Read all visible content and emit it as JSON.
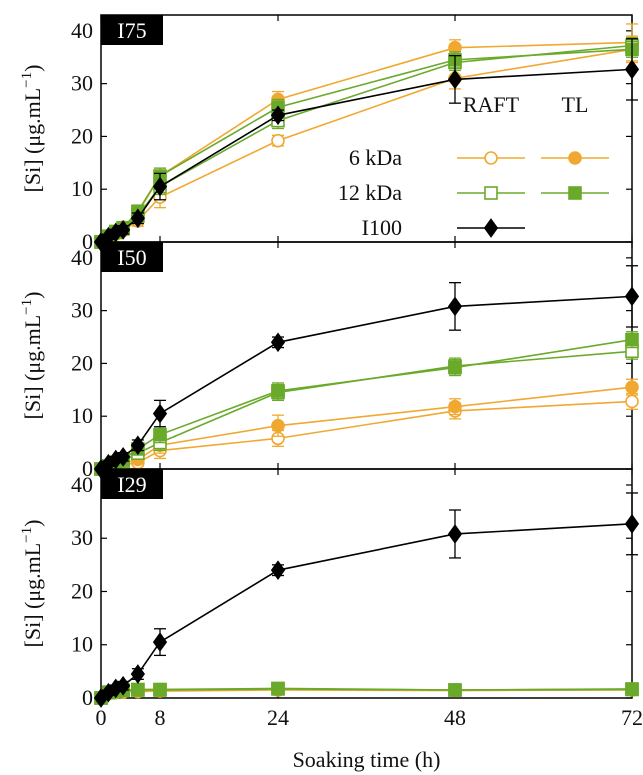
{
  "chart_data": {
    "type": "line",
    "xlabel": "Soaking time (h)",
    "ylabel": "[Si] (μg.mL",
    "ylabel_sup": "−1",
    "ylabel_close": ")",
    "x_ticks": [
      0,
      8,
      24,
      48,
      72
    ],
    "y_ticks": [
      0,
      10,
      20,
      30,
      40
    ],
    "xlim": [
      0,
      72
    ],
    "ylim": [
      0,
      43
    ],
    "legend": {
      "col_headers": [
        "RAFT",
        "TL"
      ],
      "row_labels": [
        "6 kDa",
        "12 kDa",
        "I100"
      ]
    },
    "colors": {
      "6kDa": "#f0a830",
      "12kDa": "#6aaa2a",
      "I100": "#000000"
    },
    "panels": [
      {
        "label": "I75",
        "series": [
          {
            "id": "raft6",
            "x": [
              0,
              1,
              2,
              3,
              5,
              8,
              24,
              48,
              72
            ],
            "y": [
              0,
              0.8,
              1.5,
              2.2,
              4.0,
              8.5,
              19.2,
              31.0,
              36.5
            ],
            "err": [
              0,
              0.5,
              0.6,
              0.8,
              1.0,
              2.0,
              1.0,
              2.0,
              2.5
            ]
          },
          {
            "id": "tl6",
            "x": [
              0,
              1,
              2,
              3,
              5,
              8,
              24,
              48,
              72
            ],
            "y": [
              0,
              1.2,
              2.0,
              2.8,
              5.5,
              12.5,
              27.0,
              36.8,
              37.8
            ],
            "err": [
              0,
              0.6,
              0.8,
              1.0,
              1.2,
              1.5,
              1.5,
              1.5,
              3.5
            ]
          },
          {
            "id": "raft12",
            "x": [
              0,
              1,
              2,
              3,
              5,
              8,
              24,
              48,
              72
            ],
            "y": [
              0,
              1.0,
              1.8,
              2.5,
              5.0,
              10.5,
              23.0,
              34.0,
              37.2
            ],
            "err": [
              0,
              0.6,
              0.8,
              1.0,
              1.0,
              1.5,
              1.5,
              1.5,
              1.5
            ]
          },
          {
            "id": "tl12",
            "x": [
              0,
              1,
              2,
              3,
              5,
              8,
              24,
              48,
              72
            ],
            "y": [
              0,
              1.1,
              2.0,
              2.7,
              5.8,
              12.5,
              25.5,
              34.5,
              36.5
            ],
            "err": [
              0,
              0.6,
              0.8,
              1.0,
              1.2,
              1.5,
              1.5,
              1.5,
              1.5
            ]
          },
          {
            "id": "i100",
            "x": [
              0,
              1,
              2,
              3,
              5,
              8,
              24,
              48,
              72
            ],
            "y": [
              0,
              1.0,
              1.8,
              2.3,
              4.5,
              10.5,
              24.0,
              30.8,
              32.7
            ],
            "err": [
              0,
              0.5,
              0.6,
              0.8,
              1.0,
              2.5,
              1.0,
              4.5,
              5.8
            ]
          }
        ]
      },
      {
        "label": "I50",
        "series": [
          {
            "id": "raft6",
            "x": [
              0,
              1,
              2,
              3,
              5,
              8,
              24,
              48,
              72
            ],
            "y": [
              0,
              0.3,
              0.6,
              0.8,
              1.2,
              3.5,
              5.8,
              11.0,
              12.8
            ],
            "err": [
              0,
              0.3,
              0.4,
              0.5,
              0.6,
              1.5,
              1.5,
              1.5,
              1.5
            ]
          },
          {
            "id": "tl6",
            "x": [
              0,
              1,
              2,
              3,
              5,
              8,
              24,
              48,
              72
            ],
            "y": [
              0,
              0.4,
              0.8,
              1.1,
              1.8,
              4.5,
              8.2,
              11.8,
              15.5
            ],
            "err": [
              0,
              0.3,
              0.4,
              0.5,
              0.6,
              1.5,
              2.0,
              1.5,
              1.5
            ]
          },
          {
            "id": "raft12",
            "x": [
              0,
              1,
              2,
              3,
              5,
              8,
              24,
              48,
              72
            ],
            "y": [
              0,
              0.5,
              1.0,
              1.5,
              3.0,
              5.0,
              14.5,
              19.5,
              22.3
            ],
            "err": [
              0,
              0.4,
              0.5,
              0.6,
              0.8,
              1.5,
              1.5,
              1.5,
              1.5
            ]
          },
          {
            "id": "tl12",
            "x": [
              0,
              1,
              2,
              3,
              5,
              8,
              24,
              48,
              72
            ],
            "y": [
              0,
              0.6,
              1.2,
              1.8,
              3.8,
              6.5,
              14.8,
              19.2,
              24.5
            ],
            "err": [
              0,
              0.4,
              0.5,
              0.6,
              0.8,
              1.5,
              1.5,
              1.5,
              1.5
            ]
          },
          {
            "id": "i100",
            "x": [
              0,
              1,
              2,
              3,
              5,
              8,
              24,
              48,
              72
            ],
            "y": [
              0,
              1.0,
              1.8,
              2.3,
              4.5,
              10.5,
              24.0,
              30.8,
              32.7
            ],
            "err": [
              0,
              0.5,
              0.6,
              0.8,
              1.0,
              2.5,
              1.0,
              4.5,
              5.8
            ]
          }
        ]
      },
      {
        "label": "I29",
        "series": [
          {
            "id": "raft6",
            "x": [
              0,
              1,
              2,
              3,
              5,
              8,
              24,
              48,
              72
            ],
            "y": [
              0,
              0.8,
              1.0,
              1.1,
              1.2,
              1.3,
              1.5,
              1.4,
              1.5
            ],
            "err": [
              0,
              0.4,
              0.4,
              0.4,
              0.4,
              0.4,
              0.4,
              0.4,
              0.4
            ]
          },
          {
            "id": "tl6",
            "x": [
              0,
              1,
              2,
              3,
              5,
              8,
              24,
              48,
              72
            ],
            "y": [
              0,
              0.9,
              1.1,
              1.2,
              1.3,
              1.4,
              1.6,
              1.5,
              1.6
            ],
            "err": [
              0,
              0.4,
              0.4,
              0.4,
              0.4,
              0.4,
              0.4,
              0.4,
              0.4
            ]
          },
          {
            "id": "raft12",
            "x": [
              0,
              1,
              2,
              3,
              5,
              8,
              24,
              48,
              72
            ],
            "y": [
              0,
              1.0,
              1.2,
              1.4,
              1.5,
              1.5,
              1.7,
              1.5,
              1.6
            ],
            "err": [
              0,
              0.4,
              0.4,
              0.4,
              0.4,
              0.4,
              0.4,
              0.4,
              0.4
            ]
          },
          {
            "id": "tl12",
            "x": [
              0,
              1,
              2,
              3,
              5,
              8,
              24,
              48,
              72
            ],
            "y": [
              0,
              1.1,
              1.3,
              1.5,
              1.6,
              1.6,
              1.8,
              1.5,
              1.7
            ],
            "err": [
              0,
              0.4,
              0.4,
              0.4,
              0.4,
              0.4,
              0.4,
              0.4,
              0.4
            ]
          },
          {
            "id": "i100",
            "x": [
              0,
              1,
              2,
              3,
              5,
              8,
              24,
              48,
              72
            ],
            "y": [
              0,
              1.0,
              1.8,
              2.3,
              4.5,
              10.5,
              24.0,
              30.8,
              32.7
            ],
            "err": [
              0,
              0.5,
              0.6,
              0.8,
              1.0,
              2.5,
              1.0,
              4.5,
              5.8
            ]
          }
        ]
      }
    ],
    "series_styles": {
      "raft6": {
        "color": "6kDa",
        "marker": "circle",
        "fill": false
      },
      "tl6": {
        "color": "6kDa",
        "marker": "circle",
        "fill": true
      },
      "raft12": {
        "color": "12kDa",
        "marker": "square",
        "fill": false
      },
      "tl12": {
        "color": "12kDa",
        "marker": "square",
        "fill": true
      },
      "i100": {
        "color": "I100",
        "marker": "diamond",
        "fill": true
      }
    }
  }
}
